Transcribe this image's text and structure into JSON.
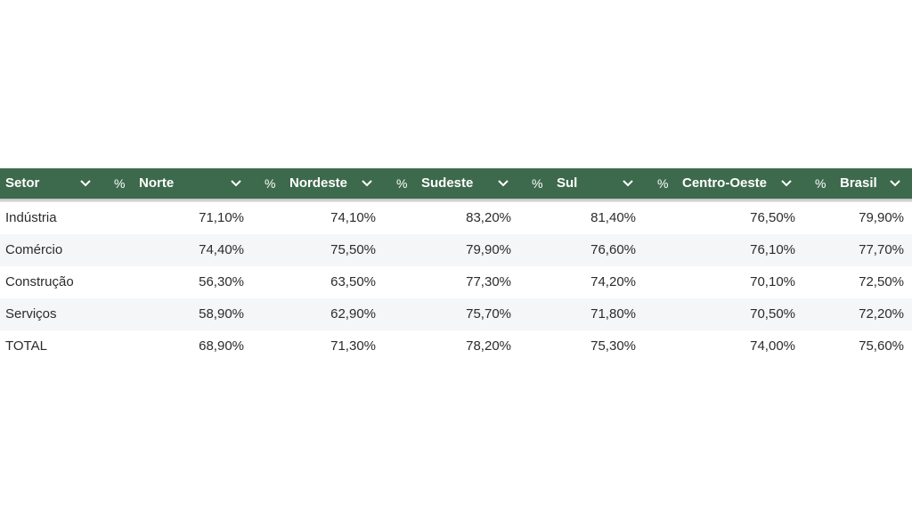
{
  "table": {
    "header": {
      "setor": "Setor",
      "pct_symbol": "%",
      "columns": [
        "Norte",
        "Nordeste",
        "Sudeste",
        "Sul",
        "Centro-Oeste",
        "Brasil"
      ]
    },
    "rows": [
      {
        "setor": "Indústria",
        "values": [
          "71,10%",
          "74,10%",
          "83,20%",
          "81,40%",
          "76,50%",
          "79,90%"
        ]
      },
      {
        "setor": "Comércio",
        "values": [
          "74,40%",
          "75,50%",
          "79,90%",
          "76,60%",
          "76,10%",
          "77,70%"
        ]
      },
      {
        "setor": "Construção",
        "values": [
          "56,30%",
          "63,50%",
          "77,30%",
          "74,20%",
          "70,10%",
          "72,50%"
        ]
      },
      {
        "setor": "Serviços",
        "values": [
          "58,90%",
          "62,90%",
          "75,70%",
          "71,80%",
          "70,50%",
          "72,20%"
        ]
      },
      {
        "setor": "TOTAL",
        "values": [
          "68,90%",
          "71,30%",
          "78,20%",
          "75,30%",
          "74,00%",
          "75,60%"
        ]
      }
    ],
    "colors": {
      "header_bg": "#3d6a4d",
      "header_text": "#ffffff",
      "row_alt_bg": "#f4f6f8"
    },
    "icons": {
      "sort": "chevron-down-icon"
    }
  }
}
